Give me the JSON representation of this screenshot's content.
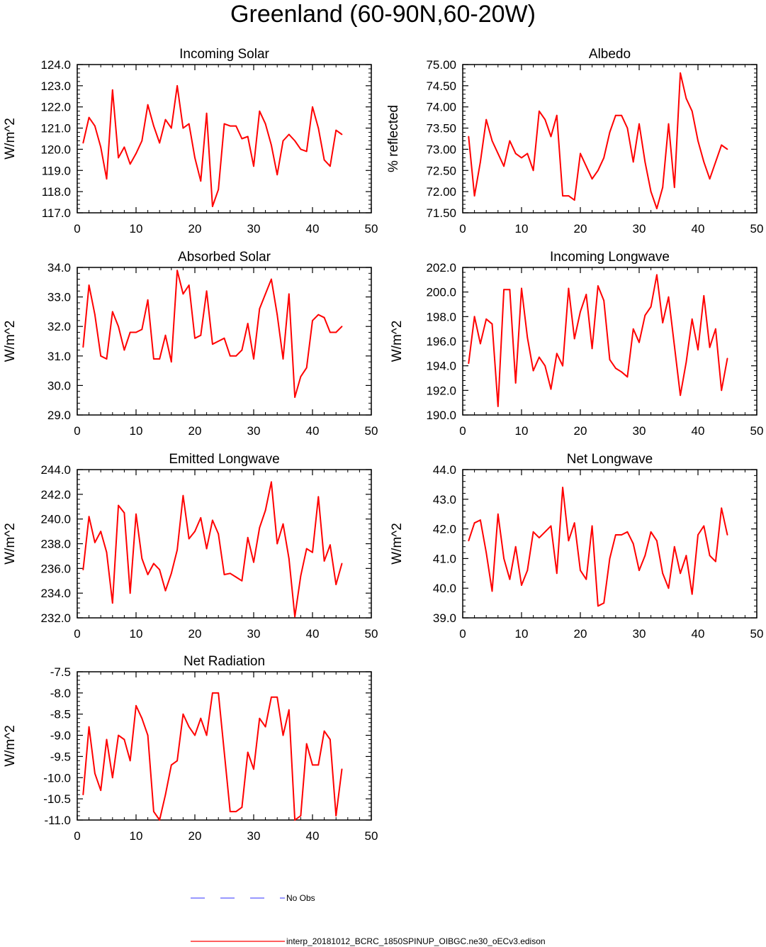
{
  "title": "Greenland (60-90N,60-20W)",
  "chart_data": [
    {
      "type": "line",
      "title": "Incoming Solar",
      "xlabel": "",
      "ylabel": "W/m^2",
      "xlim": [
        0,
        50
      ],
      "ylim": [
        117.0,
        124.0
      ],
      "xticks": [
        "0",
        "10",
        "20",
        "30",
        "40",
        "50"
      ],
      "yticks": [
        "117.0",
        "118.0",
        "119.0",
        "120.0",
        "121.0",
        "122.0",
        "123.0",
        "124.0"
      ],
      "x": [
        1,
        2,
        3,
        4,
        5,
        6,
        7,
        8,
        9,
        10,
        11,
        12,
        13,
        14,
        15,
        16,
        17,
        18,
        19,
        20,
        21,
        22,
        23,
        24,
        25,
        26,
        27,
        28,
        29,
        30,
        31,
        32,
        33,
        34,
        35,
        36,
        37,
        38,
        39,
        40,
        41,
        42,
        43,
        44,
        45
      ],
      "series": [
        {
          "name": "interp_20181012_BCRC_1850SPINUP_OIBGC.ne30_oECv3.edison",
          "color": "#ff0000",
          "values": [
            120.3,
            121.5,
            121.1,
            120.1,
            118.6,
            122.8,
            119.6,
            120.1,
            119.3,
            119.8,
            120.4,
            122.1,
            121.1,
            120.3,
            121.4,
            121.0,
            123.0,
            121.0,
            121.2,
            119.6,
            118.5,
            121.7,
            117.3,
            118.1,
            121.2,
            121.1,
            121.1,
            120.5,
            120.6,
            119.2,
            121.8,
            121.2,
            120.2,
            118.8,
            120.4,
            120.7,
            120.4,
            120.0,
            119.9,
            122.0,
            121.0,
            119.5,
            119.2,
            120.9,
            120.7
          ]
        }
      ]
    },
    {
      "type": "line",
      "title": "Albedo",
      "xlabel": "",
      "ylabel": "% reflected",
      "xlim": [
        0,
        50
      ],
      "ylim": [
        71.5,
        75.0
      ],
      "xticks": [
        "0",
        "10",
        "20",
        "30",
        "40",
        "50"
      ],
      "yticks": [
        "71.50",
        "72.00",
        "72.50",
        "73.00",
        "73.50",
        "74.00",
        "74.50",
        "75.00"
      ],
      "x": [
        1,
        2,
        3,
        4,
        5,
        6,
        7,
        8,
        9,
        10,
        11,
        12,
        13,
        14,
        15,
        16,
        17,
        18,
        19,
        20,
        21,
        22,
        23,
        24,
        25,
        26,
        27,
        28,
        29,
        30,
        31,
        32,
        33,
        34,
        35,
        36,
        37,
        38,
        39,
        40,
        41,
        42,
        43,
        44,
        45
      ],
      "series": [
        {
          "name": "interp_20181012_BCRC_1850SPINUP_OIBGC.ne30_oECv3.edison",
          "color": "#ff0000",
          "values": [
            73.3,
            71.9,
            72.7,
            73.7,
            73.2,
            72.9,
            72.6,
            73.2,
            72.9,
            72.8,
            72.9,
            72.5,
            73.9,
            73.7,
            73.3,
            73.8,
            71.9,
            71.9,
            71.8,
            72.9,
            72.6,
            72.3,
            72.5,
            72.8,
            73.4,
            73.8,
            73.8,
            73.5,
            72.7,
            73.6,
            72.7,
            72.0,
            71.6,
            72.1,
            73.6,
            72.1,
            74.8,
            74.2,
            73.9,
            73.2,
            72.7,
            72.3,
            72.7,
            73.1,
            73.0
          ]
        }
      ]
    },
    {
      "type": "line",
      "title": "Absorbed Solar",
      "xlabel": "",
      "ylabel": "W/m^2",
      "xlim": [
        0,
        50
      ],
      "ylim": [
        29.0,
        34.0
      ],
      "xticks": [
        "0",
        "10",
        "20",
        "30",
        "40",
        "50"
      ],
      "yticks": [
        "29.0",
        "30.0",
        "31.0",
        "32.0",
        "33.0",
        "34.0"
      ],
      "x": [
        1,
        2,
        3,
        4,
        5,
        6,
        7,
        8,
        9,
        10,
        11,
        12,
        13,
        14,
        15,
        16,
        17,
        18,
        19,
        20,
        21,
        22,
        23,
        24,
        25,
        26,
        27,
        28,
        29,
        30,
        31,
        32,
        33,
        34,
        35,
        36,
        37,
        38,
        39,
        40,
        41,
        42,
        43,
        44,
        45
      ],
      "series": [
        {
          "name": "interp_20181012_BCRC_1850SPINUP_OIBGC.ne30_oECv3.edison",
          "color": "#ff0000",
          "values": [
            31.3,
            33.4,
            32.4,
            31.0,
            30.9,
            32.5,
            32.0,
            31.2,
            31.8,
            31.8,
            31.9,
            32.9,
            30.9,
            30.9,
            31.7,
            30.8,
            33.9,
            33.1,
            33.4,
            31.6,
            31.7,
            33.2,
            31.4,
            31.5,
            31.6,
            31.0,
            31.0,
            31.2,
            32.1,
            30.9,
            32.6,
            33.1,
            33.6,
            32.4,
            30.9,
            33.1,
            29.6,
            30.3,
            30.6,
            32.2,
            32.4,
            32.3,
            31.8,
            31.8,
            32.0
          ]
        }
      ]
    },
    {
      "type": "line",
      "title": "Incoming Longwave",
      "xlabel": "",
      "ylabel": "W/m^2",
      "xlim": [
        0,
        50
      ],
      "ylim": [
        190.0,
        202.0
      ],
      "xticks": [
        "0",
        "10",
        "20",
        "30",
        "40",
        "50"
      ],
      "yticks": [
        "190.0",
        "192.0",
        "194.0",
        "196.0",
        "198.0",
        "200.0",
        "202.0"
      ],
      "x": [
        1,
        2,
        3,
        4,
        5,
        6,
        7,
        8,
        9,
        10,
        11,
        12,
        13,
        14,
        15,
        16,
        17,
        18,
        19,
        20,
        21,
        22,
        23,
        24,
        25,
        26,
        27,
        28,
        29,
        30,
        31,
        32,
        33,
        34,
        35,
        36,
        37,
        38,
        39,
        40,
        41,
        42,
        43,
        44,
        45
      ],
      "series": [
        {
          "name": "interp_20181012_BCRC_1850SPINUP_OIBGC.ne30_oECv3.edison",
          "color": "#ff0000",
          "values": [
            194.2,
            198.0,
            195.8,
            197.8,
            197.4,
            190.7,
            200.2,
            200.2,
            192.6,
            200.3,
            196.3,
            193.6,
            194.7,
            194.0,
            192.1,
            195.0,
            194.0,
            200.3,
            196.2,
            198.4,
            199.8,
            195.4,
            200.5,
            199.3,
            194.5,
            193.8,
            193.5,
            193.1,
            197.0,
            195.9,
            198.1,
            198.8,
            201.4,
            197.5,
            199.6,
            195.6,
            191.6,
            194.3,
            197.8,
            195.3,
            199.7,
            195.5,
            197.0,
            192.0,
            194.6
          ]
        }
      ]
    },
    {
      "type": "line",
      "title": "Emitted Longwave",
      "xlabel": "",
      "ylabel": "W/m^2",
      "xlim": [
        0,
        50
      ],
      "ylim": [
        232.0,
        244.0
      ],
      "xticks": [
        "0",
        "10",
        "20",
        "30",
        "40",
        "50"
      ],
      "yticks": [
        "232.0",
        "234.0",
        "236.0",
        "238.0",
        "240.0",
        "242.0",
        "244.0"
      ],
      "x": [
        1,
        2,
        3,
        4,
        5,
        6,
        7,
        8,
        9,
        10,
        11,
        12,
        13,
        14,
        15,
        16,
        17,
        18,
        19,
        20,
        21,
        22,
        23,
        24,
        25,
        26,
        27,
        28,
        29,
        30,
        31,
        32,
        33,
        34,
        35,
        36,
        37,
        38,
        39,
        40,
        41,
        42,
        43,
        44,
        45
      ],
      "series": [
        {
          "name": "interp_20181012_BCRC_1850SPINUP_OIBGC.ne30_oECv3.edison",
          "color": "#ff0000",
          "values": [
            235.9,
            240.2,
            238.1,
            239.0,
            237.3,
            233.2,
            241.1,
            240.5,
            234.0,
            240.4,
            236.8,
            235.5,
            236.4,
            235.9,
            234.2,
            235.6,
            237.5,
            241.9,
            238.4,
            239.0,
            240.1,
            237.6,
            239.9,
            238.8,
            235.5,
            235.6,
            235.3,
            235.0,
            238.5,
            236.5,
            239.3,
            240.7,
            243.0,
            238.0,
            239.6,
            236.8,
            232.1,
            235.4,
            237.6,
            237.3,
            241.8,
            236.6,
            237.9,
            234.7,
            236.4
          ]
        }
      ]
    },
    {
      "type": "line",
      "title": "Net Longwave",
      "xlabel": "",
      "ylabel": "W/m^2",
      "xlim": [
        0,
        50
      ],
      "ylim": [
        39.0,
        44.0
      ],
      "xticks": [
        "0",
        "10",
        "20",
        "30",
        "40",
        "50"
      ],
      "yticks": [
        "39.0",
        "40.0",
        "41.0",
        "42.0",
        "43.0",
        "44.0"
      ],
      "x": [
        1,
        2,
        3,
        4,
        5,
        6,
        7,
        8,
        9,
        10,
        11,
        12,
        13,
        14,
        15,
        16,
        17,
        18,
        19,
        20,
        21,
        22,
        23,
        24,
        25,
        26,
        27,
        28,
        29,
        30,
        31,
        32,
        33,
        34,
        35,
        36,
        37,
        38,
        39,
        40,
        41,
        42,
        43,
        44,
        45
      ],
      "series": [
        {
          "name": "interp_20181012_BCRC_1850SPINUP_OIBGC.ne30_oECv3.edison",
          "color": "#ff0000",
          "values": [
            41.6,
            42.2,
            42.3,
            41.2,
            39.9,
            42.5,
            41.0,
            40.3,
            41.4,
            40.1,
            40.6,
            41.9,
            41.7,
            41.9,
            42.1,
            40.5,
            43.4,
            41.6,
            42.2,
            40.6,
            40.3,
            42.1,
            39.4,
            39.5,
            41.0,
            41.8,
            41.8,
            41.9,
            41.5,
            40.6,
            41.1,
            41.9,
            41.6,
            40.5,
            40.0,
            41.4,
            40.5,
            41.1,
            39.8,
            41.8,
            42.1,
            41.1,
            40.9,
            42.7,
            41.8
          ]
        }
      ]
    },
    {
      "type": "line",
      "title": "Net Radiation",
      "xlabel": "",
      "ylabel": "W/m^2",
      "xlim": [
        0,
        50
      ],
      "ylim": [
        -11.0,
        -7.5
      ],
      "xticks": [
        "0",
        "10",
        "20",
        "30",
        "40",
        "50"
      ],
      "yticks": [
        "-11.0",
        "-10.5",
        "-10.0",
        "-9.5",
        "-9.0",
        "-8.5",
        "-8.0",
        "-7.5"
      ],
      "x": [
        1,
        2,
        3,
        4,
        5,
        6,
        7,
        8,
        9,
        10,
        11,
        12,
        13,
        14,
        15,
        16,
        17,
        18,
        19,
        20,
        21,
        22,
        23,
        24,
        25,
        26,
        27,
        28,
        29,
        30,
        31,
        32,
        33,
        34,
        35,
        36,
        37,
        38,
        39,
        40,
        41,
        42,
        43,
        44,
        45
      ],
      "series": [
        {
          "name": "interp_20181012_BCRC_1850SPINUP_OIBGC.ne30_oECv3.edison",
          "color": "#ff0000",
          "values": [
            -10.4,
            -8.8,
            -9.9,
            -10.3,
            -9.1,
            -10.0,
            -9.0,
            -9.1,
            -9.6,
            -8.3,
            -8.6,
            -9.0,
            -10.8,
            -11.0,
            -10.4,
            -9.7,
            -9.6,
            -8.5,
            -8.8,
            -9.0,
            -8.6,
            -9.0,
            -8.0,
            -8.0,
            -9.4,
            -10.8,
            -10.8,
            -10.7,
            -9.4,
            -9.8,
            -8.6,
            -8.8,
            -8.1,
            -8.1,
            -9.0,
            -8.4,
            -11.0,
            -10.9,
            -9.2,
            -9.7,
            -9.7,
            -8.9,
            -9.1,
            -10.9,
            -9.8
          ]
        }
      ]
    }
  ],
  "legend": [
    {
      "label": "No Obs",
      "color": "#5b5bff",
      "style": "dashed"
    },
    {
      "label": "interp_20181012_BCRC_1850SPINUP_OIBGC.ne30_oECv3.edison",
      "color": "#ff0000",
      "style": "solid"
    }
  ]
}
